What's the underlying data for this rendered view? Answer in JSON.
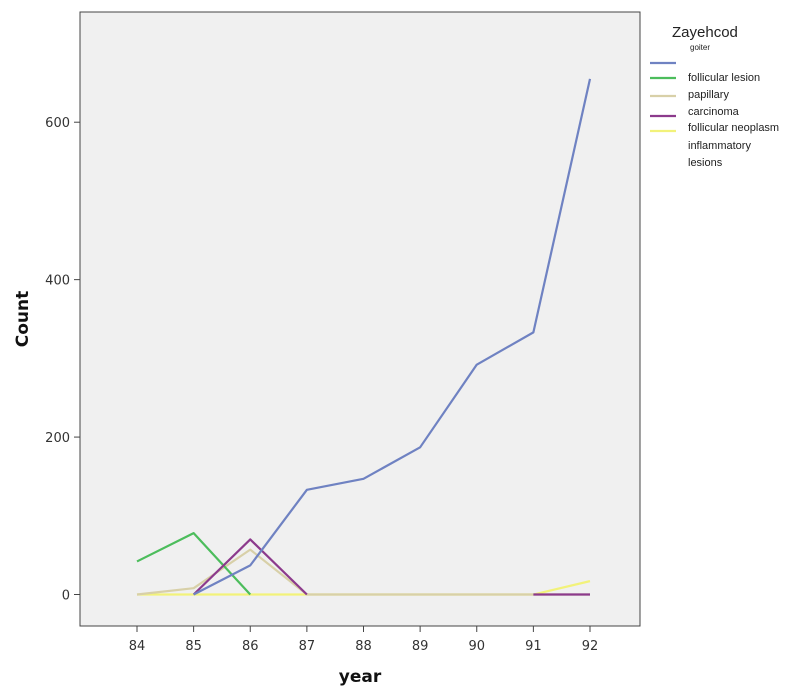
{
  "chart_data": {
    "type": "line",
    "xlabel": "year",
    "ylabel": "Count",
    "x": [
      "84",
      "85",
      "86",
      "87",
      "88",
      "89",
      "90",
      "91",
      "92"
    ],
    "yticks": [
      0,
      200,
      400,
      600
    ],
    "ylim": [
      -40,
      740
    ],
    "grid": false,
    "legend": {
      "title": "Zayehcod",
      "placement": "right",
      "entries": [
        "goiter",
        "follicular lesion",
        "papillary",
        "carcinoma",
        "follicular neoplasm",
        "inflammatory",
        "lesions"
      ]
    },
    "series": [
      {
        "name": "goiter",
        "color": "#6f82c2",
        "values": [
          null,
          0,
          37,
          133,
          147,
          187,
          292,
          333,
          655
        ]
      },
      {
        "name": "follicular lesion",
        "color": "#4cbd5c",
        "values": [
          42,
          78,
          0,
          null,
          null,
          null,
          null,
          null,
          null
        ]
      },
      {
        "name": "papillary",
        "color": "#d8d0a8",
        "values": [
          0,
          8,
          57,
          0,
          0,
          0,
          0,
          0,
          0
        ]
      },
      {
        "name": "carcinoma",
        "color": "#8c3a8c",
        "values": [
          null,
          0,
          70,
          0,
          null,
          null,
          null,
          0,
          0
        ]
      },
      {
        "name": "follicular neoplasm / inflammatory lesions",
        "color": "#f2f27a",
        "values": [
          0,
          0,
          0,
          0,
          0,
          0,
          0,
          0,
          17
        ]
      }
    ]
  }
}
